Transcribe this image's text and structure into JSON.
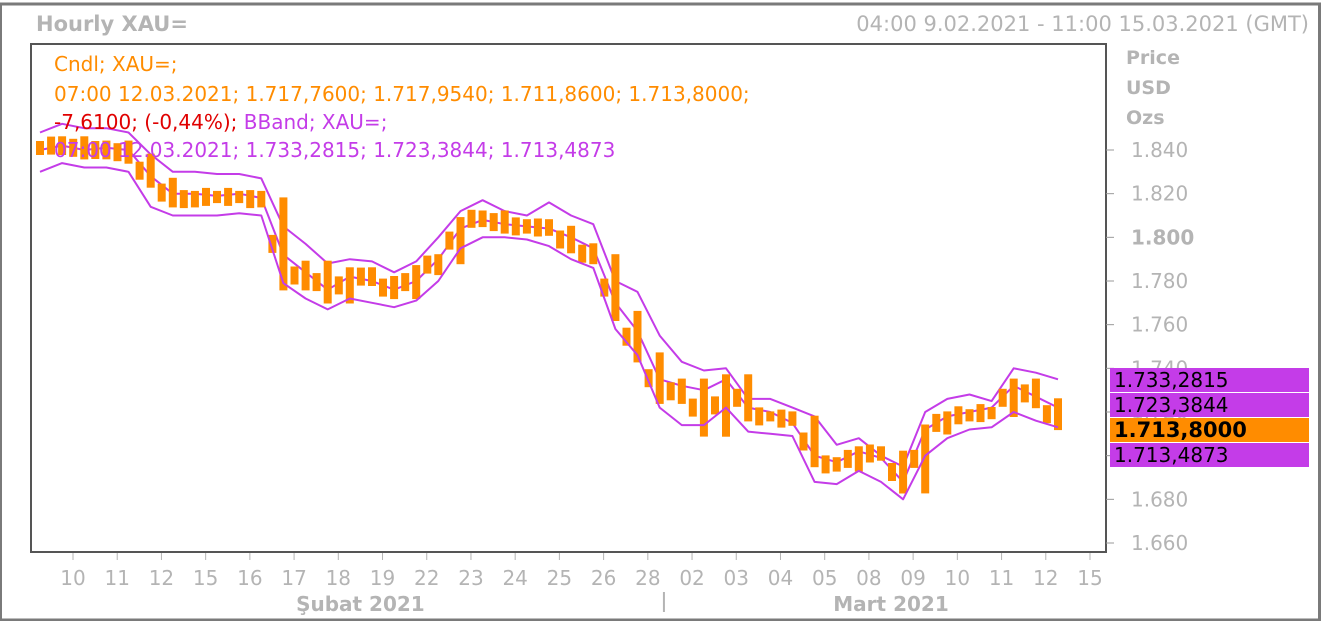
{
  "header": {
    "title": "Hourly XAU=",
    "range": "04:00 9.02.2021 - 11:00 15.03.2021 (GMT)"
  },
  "axis_head": {
    "line1": "Price",
    "line2": "USD",
    "line3": "Ozs"
  },
  "legend": {
    "cndl_name": "Cndl; XAU=;",
    "cndl_values": "07:00 12.03.2021; 1.717,7600; 1.717,9540; 1.711,8600; 1.713,8000;",
    "change": "-7,6100; (-0,44%);",
    "bband_name": "BBand; XAU=;",
    "bband_values": "07:00 12.03.2021; 1.733,2815; 1.723,3844; 1.713,4873"
  },
  "tags": {
    "upper": "1.733,2815",
    "mid": "1.723,3844",
    "last": "1.713,8000",
    "lower": "1.713,4873"
  },
  "colors": {
    "candle": "#ff8c00",
    "band": "#c43ce8",
    "axis_text": "#b4b4b4",
    "negative": "#e00000"
  },
  "chart_data": {
    "type": "line",
    "ylim": [
      1655,
      1855
    ],
    "y_ticks": [
      {
        "value": 1660,
        "label": "1.660",
        "bold": false
      },
      {
        "value": 1680,
        "label": "1.680",
        "bold": false
      },
      {
        "value": 1700,
        "label": "1.700",
        "bold": true
      },
      {
        "value": 1720,
        "label": "1.720",
        "bold": false
      },
      {
        "value": 1740,
        "label": "1.740",
        "bold": false
      },
      {
        "value": 1760,
        "label": "1.760",
        "bold": false
      },
      {
        "value": 1780,
        "label": "1.780",
        "bold": false
      },
      {
        "value": 1800,
        "label": "1.800",
        "bold": true
      },
      {
        "value": 1820,
        "label": "1.820",
        "bold": false
      },
      {
        "value": 1840,
        "label": "1.840",
        "bold": false
      }
    ],
    "x_day_labels": [
      "10",
      "11",
      "12",
      "15",
      "16",
      "17",
      "18",
      "19",
      "22",
      "23",
      "24",
      "25",
      "26",
      "28",
      "02",
      "03",
      "04",
      "05",
      "08",
      "09",
      "10",
      "11",
      "12",
      "15"
    ],
    "months": [
      {
        "label": "Şubat 2021",
        "first_day": 0,
        "last_day": 13
      },
      {
        "label": "Mart 2021",
        "first_day": 14,
        "last_day": 23
      }
    ],
    "series": [
      {
        "name": "Cndl",
        "style": "candles",
        "x": [
          0,
          0.5,
          1,
          1.5,
          2,
          2.5,
          3,
          3.5,
          4,
          4.5,
          5,
          5.5,
          6,
          6.5,
          7,
          7.5,
          8,
          8.5,
          9,
          9.5,
          10,
          10.5,
          11,
          11.5,
          12,
          12.5,
          13,
          13.5,
          14,
          14.5,
          15,
          15.5,
          16,
          16.5,
          17,
          17.5,
          18,
          18.5,
          19,
          19.5,
          20,
          20.5,
          21,
          21.5,
          22,
          22.5,
          23
        ],
        "values": [
          1840,
          1844,
          1838,
          1842,
          1836,
          1825,
          1816,
          1819,
          1818,
          1819,
          1816,
          1778,
          1787,
          1772,
          1784,
          1780,
          1774,
          1785,
          1790,
          1807,
          1810,
          1804,
          1806,
          1803,
          1795,
          1790,
          1764,
          1745,
          1726,
          1733,
          1711,
          1735,
          1718,
          1718,
          1716,
          1697,
          1695,
          1702,
          1700,
          1685,
          1712,
          1718,
          1719,
          1720,
          1733,
          1724,
          1714
        ]
      },
      {
        "name": "BBand Upper",
        "style": "line",
        "x": [
          0,
          0.5,
          1,
          1.5,
          2,
          2.5,
          3,
          3.5,
          4,
          4.5,
          5,
          5.5,
          6,
          6.5,
          7,
          7.5,
          8,
          8.5,
          9,
          9.5,
          10,
          10.5,
          11,
          11.5,
          12,
          12.5,
          13,
          13.5,
          14,
          14.5,
          15,
          15.5,
          16,
          16.5,
          17,
          17.5,
          18,
          18.5,
          19,
          19.5,
          20,
          20.5,
          21,
          21.5,
          22,
          22.5,
          23
        ],
        "values": [
          1848,
          1852,
          1850,
          1850,
          1848,
          1838,
          1830,
          1830,
          1829,
          1829,
          1827,
          1805,
          1797,
          1788,
          1790,
          1789,
          1784,
          1789,
          1800,
          1812,
          1817,
          1812,
          1810,
          1816,
          1810,
          1806,
          1780,
          1775,
          1755,
          1743,
          1739,
          1740,
          1726,
          1726,
          1722,
          1718,
          1705,
          1708,
          1700,
          1695,
          1720,
          1726,
          1728,
          1725,
          1740,
          1738,
          1735
        ]
      },
      {
        "name": "BBand Mid",
        "style": "line",
        "x": [
          0,
          0.5,
          1,
          1.5,
          2,
          2.5,
          3,
          3.5,
          4,
          4.5,
          5,
          5.5,
          6,
          6.5,
          7,
          7.5,
          8,
          8.5,
          9,
          9.5,
          10,
          10.5,
          11,
          11.5,
          12,
          12.5,
          13,
          13.5,
          14,
          14.5,
          15,
          15.5,
          16,
          16.5,
          17,
          17.5,
          18,
          18.5,
          19,
          19.5,
          20,
          20.5,
          21,
          21.5,
          22,
          22.5,
          23
        ],
        "values": [
          1840,
          1842,
          1840,
          1841,
          1840,
          1828,
          1820,
          1820,
          1819,
          1820,
          1818,
          1792,
          1784,
          1776,
          1782,
          1780,
          1776,
          1780,
          1790,
          1804,
          1808,
          1806,
          1805,
          1804,
          1800,
          1795,
          1770,
          1757,
          1735,
          1732,
          1730,
          1735,
          1722,
          1720,
          1715,
          1700,
          1697,
          1702,
          1699,
          1688,
          1712,
          1718,
          1720,
          1722,
          1732,
          1727,
          1722
        ]
      },
      {
        "name": "BBand Lower",
        "style": "line",
        "x": [
          0,
          0.5,
          1,
          1.5,
          2,
          2.5,
          3,
          3.5,
          4,
          4.5,
          5,
          5.5,
          6,
          6.5,
          7,
          7.5,
          8,
          8.5,
          9,
          9.5,
          10,
          10.5,
          11,
          11.5,
          12,
          12.5,
          13,
          13.5,
          14,
          14.5,
          15,
          15.5,
          16,
          16.5,
          17,
          17.5,
          18,
          18.5,
          19,
          19.5,
          20,
          20.5,
          21,
          21.5,
          22,
          22.5,
          23
        ],
        "values": [
          1830,
          1834,
          1832,
          1832,
          1830,
          1814,
          1810,
          1810,
          1810,
          1811,
          1810,
          1779,
          1772,
          1767,
          1772,
          1770,
          1768,
          1771,
          1780,
          1795,
          1800,
          1800,
          1799,
          1796,
          1790,
          1786,
          1758,
          1746,
          1722,
          1714,
          1714,
          1722,
          1711,
          1710,
          1709,
          1688,
          1687,
          1693,
          1688,
          1680,
          1700,
          1708,
          1712,
          1713,
          1720,
          1716,
          1713
        ]
      }
    ]
  }
}
